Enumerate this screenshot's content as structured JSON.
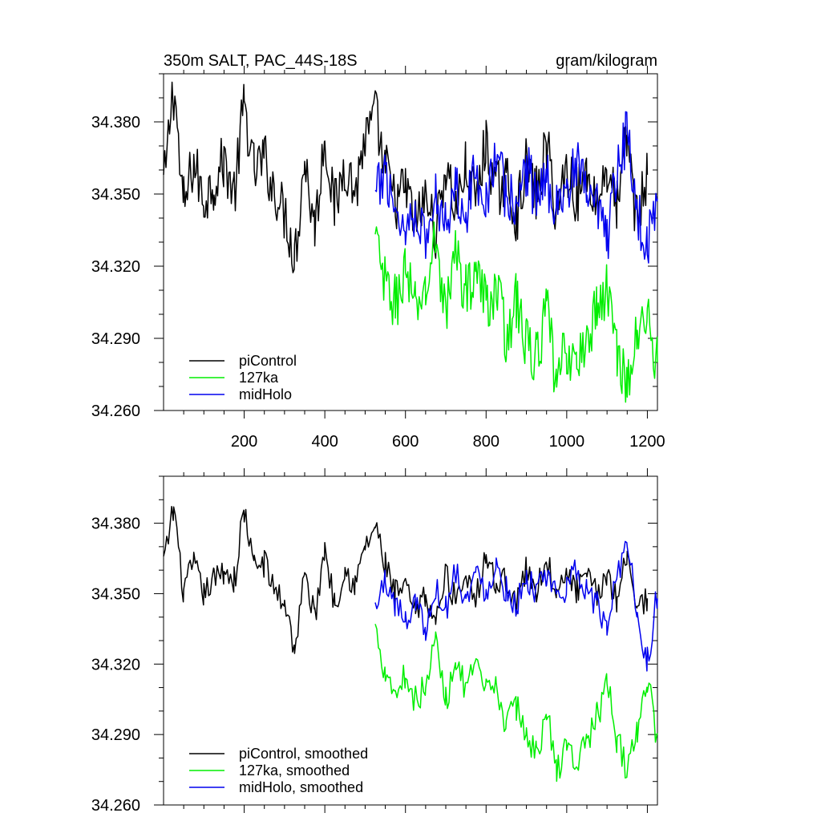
{
  "chart_data": [
    {
      "type": "line",
      "title": "350m SALT, PAC_44S-18S",
      "units": "gram/kilogram",
      "xlim": [
        0,
        1225
      ],
      "ylim": [
        34.26,
        34.4
      ],
      "x_ticks": [
        200,
        400,
        600,
        800,
        1000,
        1200
      ],
      "x_tick_labels": [
        "200",
        "400",
        "600",
        "800",
        "1000",
        "1200"
      ],
      "y_ticks": [
        34.26,
        34.29,
        34.32,
        34.35,
        34.38
      ],
      "y_tick_labels": [
        "34.260",
        "34.290",
        "34.320",
        "34.350",
        "34.380"
      ],
      "legend_position": "bottom-left",
      "series": [
        {
          "name": "piControl",
          "color": "#000000",
          "x": [
            0,
            25,
            50,
            75,
            100,
            125,
            150,
            175,
            200,
            225,
            250,
            275,
            300,
            325,
            350,
            375,
            400,
            425,
            450,
            475,
            500,
            525,
            550,
            575,
            600,
            625,
            650,
            675,
            700,
            725,
            750,
            775,
            800,
            825,
            850,
            875,
            900,
            925,
            950,
            975,
            1000,
            1025,
            1050,
            1075,
            1100,
            1125,
            1150,
            1175,
            1200
          ],
          "values": [
            34.355,
            34.392,
            34.346,
            34.362,
            34.348,
            34.355,
            34.363,
            34.352,
            34.385,
            34.36,
            34.364,
            34.352,
            34.342,
            34.326,
            34.362,
            34.338,
            34.372,
            34.345,
            34.362,
            34.352,
            34.372,
            34.382,
            34.36,
            34.347,
            34.352,
            34.338,
            34.348,
            34.335,
            34.36,
            34.345,
            34.36,
            34.348,
            34.37,
            34.352,
            34.355,
            34.342,
            34.362,
            34.35,
            34.368,
            34.345,
            34.36,
            34.35,
            34.358,
            34.348,
            34.36,
            34.345,
            34.372,
            34.34,
            34.358
          ]
        },
        {
          "name": "127ka",
          "color": "#00ee00",
          "x": [
            525,
            550,
            575,
            600,
            625,
            650,
            675,
            700,
            725,
            750,
            775,
            800,
            825,
            850,
            875,
            900,
            925,
            950,
            975,
            1000,
            1025,
            1050,
            1075,
            1100,
            1125,
            1150,
            1175,
            1200,
            1225
          ],
          "values": [
            34.33,
            34.312,
            34.305,
            34.318,
            34.302,
            34.31,
            34.33,
            34.302,
            34.325,
            34.31,
            34.318,
            34.305,
            34.31,
            34.292,
            34.305,
            34.288,
            34.282,
            34.3,
            34.272,
            34.285,
            34.278,
            34.29,
            34.302,
            34.31,
            34.285,
            34.272,
            34.29,
            34.3,
            34.28
          ]
        },
        {
          "name": "midHolo",
          "color": "#0000ee",
          "x": [
            525,
            550,
            575,
            600,
            625,
            650,
            675,
            700,
            725,
            750,
            775,
            800,
            825,
            850,
            875,
            900,
            925,
            950,
            975,
            1000,
            1025,
            1050,
            1075,
            1100,
            1125,
            1150,
            1175,
            1200,
            1225
          ],
          "values": [
            34.348,
            34.36,
            34.345,
            34.335,
            34.345,
            34.33,
            34.348,
            34.342,
            34.352,
            34.345,
            34.358,
            34.35,
            34.365,
            34.35,
            34.345,
            34.36,
            34.35,
            34.355,
            34.348,
            34.352,
            34.36,
            34.35,
            34.342,
            34.33,
            34.358,
            34.375,
            34.34,
            34.332,
            34.348
          ]
        }
      ]
    },
    {
      "type": "line",
      "title": "",
      "xlim": [
        0,
        1225
      ],
      "ylim": [
        34.26,
        34.4
      ],
      "x_ticks": [
        200,
        400,
        600,
        800,
        1000,
        1200
      ],
      "x_tick_labels": [],
      "y_ticks": [
        34.26,
        34.29,
        34.32,
        34.35,
        34.38
      ],
      "y_tick_labels": [
        "34.260",
        "34.290",
        "34.320",
        "34.350",
        "34.380"
      ],
      "legend_position": "bottom-left",
      "series": [
        {
          "name": "piControl, smoothed",
          "color": "#000000",
          "x": [
            0,
            25,
            50,
            75,
            100,
            125,
            150,
            175,
            200,
            225,
            250,
            275,
            300,
            325,
            350,
            375,
            400,
            425,
            450,
            475,
            500,
            525,
            550,
            575,
            600,
            625,
            650,
            675,
            700,
            725,
            750,
            775,
            800,
            825,
            850,
            875,
            900,
            925,
            950,
            975,
            1000,
            1025,
            1050,
            1075,
            1100,
            1125,
            1150,
            1175,
            1200
          ],
          "values": [
            34.364,
            34.385,
            34.352,
            34.362,
            34.35,
            34.356,
            34.36,
            34.356,
            34.384,
            34.362,
            34.363,
            34.352,
            34.346,
            34.328,
            34.356,
            34.342,
            34.368,
            34.347,
            34.36,
            34.354,
            34.37,
            34.378,
            34.362,
            34.35,
            34.352,
            34.342,
            34.348,
            34.338,
            34.358,
            34.348,
            34.358,
            34.35,
            34.366,
            34.354,
            34.356,
            34.346,
            34.36,
            34.352,
            34.364,
            34.348,
            34.358,
            34.352,
            34.356,
            34.35,
            34.358,
            34.348,
            34.368,
            34.344,
            34.348
          ]
        },
        {
          "name": "127ka, smoothed",
          "color": "#00ee00",
          "x": [
            525,
            550,
            575,
            600,
            625,
            650,
            675,
            700,
            725,
            750,
            775,
            800,
            825,
            850,
            875,
            900,
            925,
            950,
            975,
            1000,
            1025,
            1050,
            1075,
            1100,
            1125,
            1150,
            1175,
            1200,
            1225
          ],
          "values": [
            34.335,
            34.318,
            34.308,
            34.315,
            34.305,
            34.31,
            34.33,
            34.305,
            34.322,
            34.31,
            34.318,
            34.308,
            34.31,
            34.295,
            34.302,
            34.29,
            34.282,
            34.298,
            34.275,
            34.285,
            34.278,
            34.288,
            34.298,
            34.31,
            34.288,
            34.275,
            34.292,
            34.312,
            34.29
          ]
        },
        {
          "name": "midHolo, smoothed",
          "color": "#0000ee",
          "x": [
            525,
            550,
            575,
            600,
            625,
            650,
            675,
            700,
            725,
            750,
            775,
            800,
            825,
            850,
            875,
            900,
            925,
            950,
            975,
            1000,
            1025,
            1050,
            1075,
            1100,
            1125,
            1150,
            1175,
            1200,
            1225
          ],
          "values": [
            34.344,
            34.355,
            34.346,
            34.338,
            34.348,
            34.335,
            34.352,
            34.344,
            34.36,
            34.348,
            34.358,
            34.352,
            34.362,
            34.352,
            34.346,
            34.356,
            34.352,
            34.355,
            34.35,
            34.352,
            34.36,
            34.352,
            34.345,
            34.335,
            34.36,
            34.372,
            34.342,
            34.322,
            34.348
          ]
        }
      ]
    }
  ]
}
